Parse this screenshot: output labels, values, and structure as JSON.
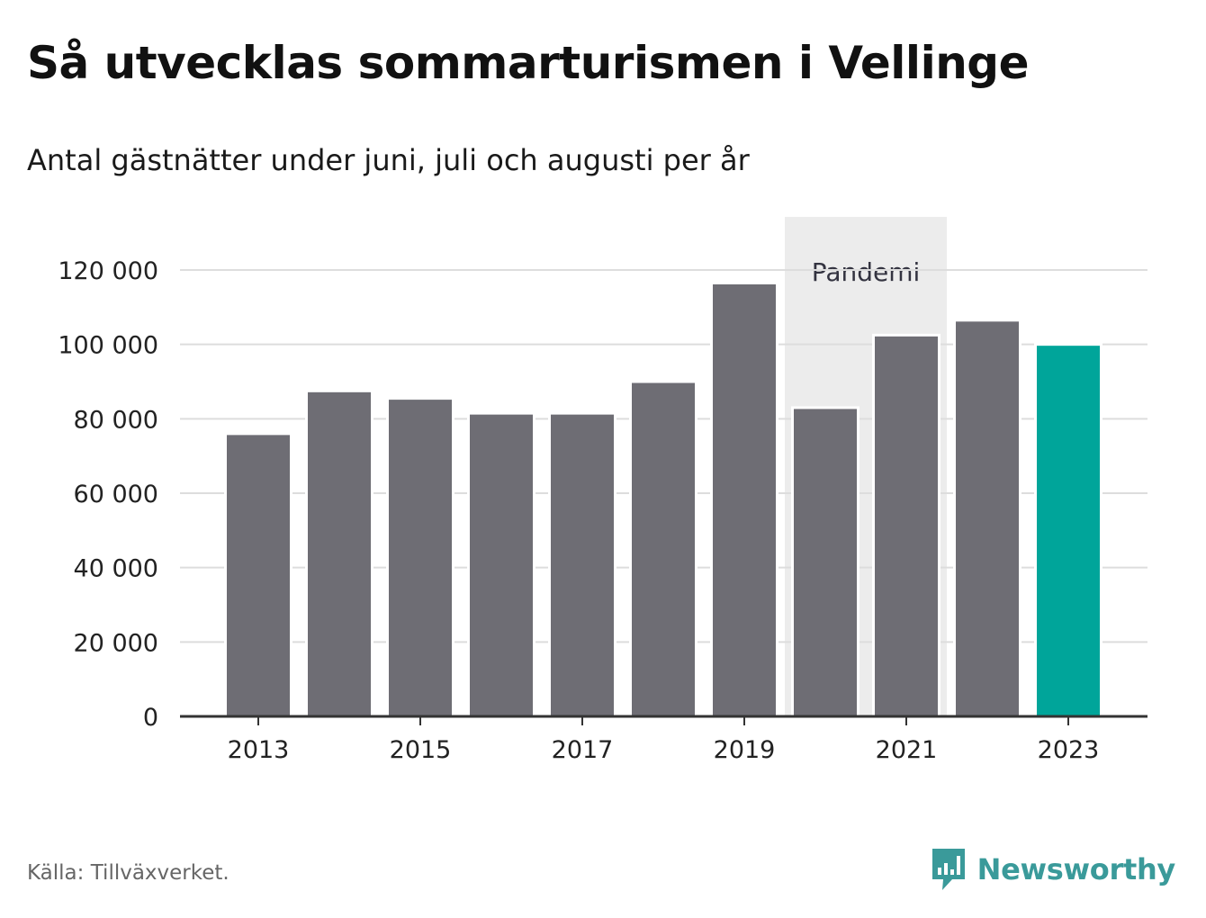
{
  "title": "Så utvecklas sommarturismen i Vellinge",
  "subtitle": "Antal gästnätter under juni, juli och augusti per år",
  "source": "Källa: Tillväxverket.",
  "brand": "Newsworthy",
  "colors": {
    "bar": "#6e6d74",
    "highlight": "#00a59a",
    "shade": "#ececec",
    "grid": "#dddddd",
    "axis": "#333333",
    "brand": "#3a9a9a"
  },
  "chart_data": {
    "type": "bar",
    "title": "Så utvecklas sommarturismen i Vellinge",
    "subtitle": "Antal gästnätter under juni, juli och augusti per år",
    "categories": [
      "2013",
      "2014",
      "2015",
      "2016",
      "2017",
      "2018",
      "2019",
      "2020",
      "2021",
      "2022",
      "2023"
    ],
    "values": [
      76000,
      87500,
      85500,
      81500,
      81500,
      90000,
      116500,
      83000,
      102500,
      106500,
      100000
    ],
    "highlight_category": "2023",
    "x_tick_labels": [
      "2013",
      "2015",
      "2017",
      "2019",
      "2021",
      "2023"
    ],
    "y_ticks": [
      0,
      20000,
      40000,
      60000,
      80000,
      100000,
      120000
    ],
    "y_tick_labels": [
      "0",
      "20 000",
      "40 000",
      "60 000",
      "80 000",
      "100 000",
      "120 000"
    ],
    "ylim": [
      0,
      120000
    ],
    "grid": true,
    "annotation": {
      "label": "Pandemi",
      "from": "2020",
      "to": "2021"
    },
    "xlabel": "",
    "ylabel": ""
  }
}
